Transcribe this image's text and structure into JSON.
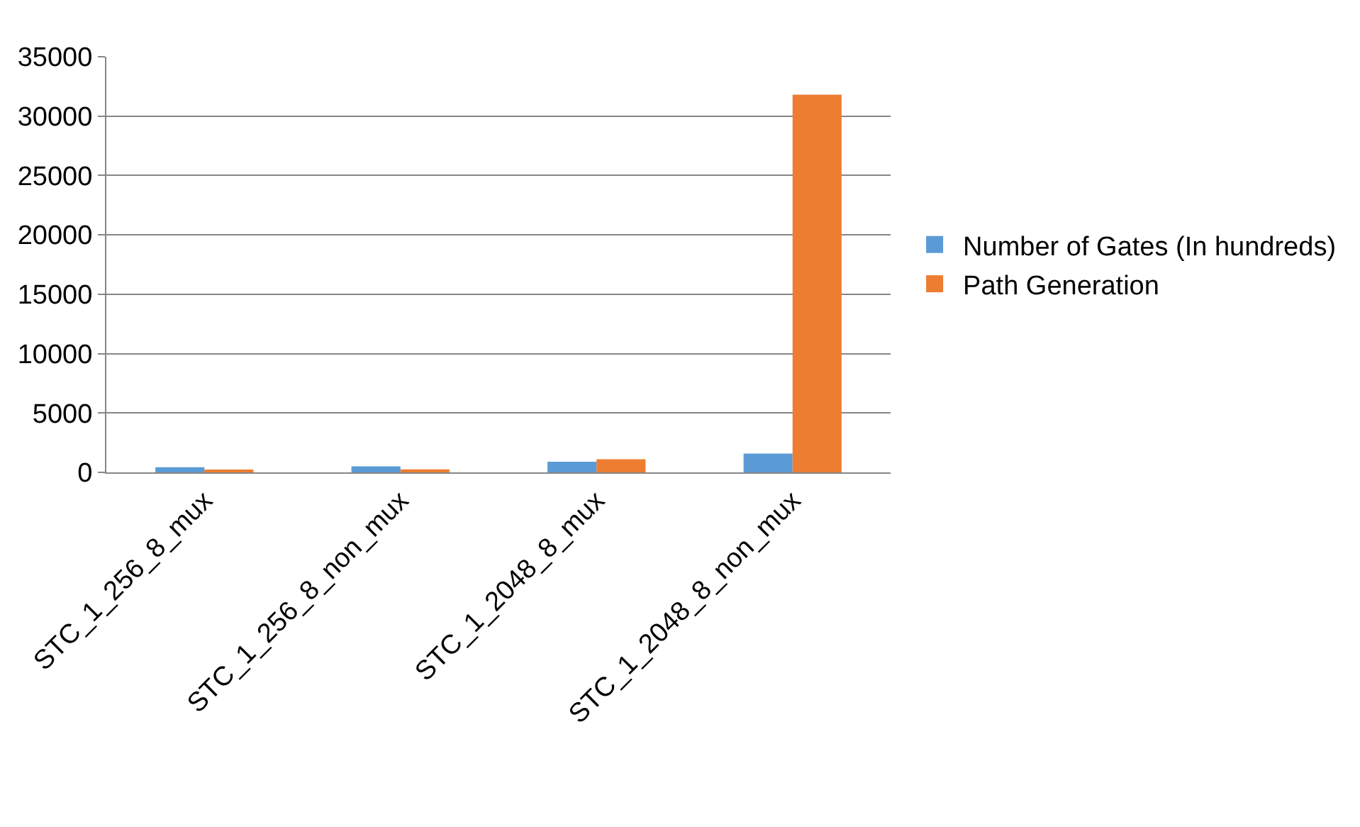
{
  "chart_data": {
    "type": "bar",
    "categories": [
      "STC_1_256_8_mux",
      "STC_1_256_8_non_mux",
      "STC_1_2048_8_mux",
      "STC_1_2048_8_non_mux"
    ],
    "series": [
      {
        "name": "Number of Gates (In hundreds)",
        "color": "#5b9bd5",
        "values": [
          430,
          510,
          900,
          1580
        ]
      },
      {
        "name": "Path Generation",
        "color": "#ed7d31",
        "values": [
          170,
          260,
          1110,
          31800
        ]
      }
    ],
    "ylim": [
      0,
      35000
    ],
    "yticks": [
      0,
      5000,
      10000,
      15000,
      20000,
      25000,
      30000,
      35000
    ],
    "grid": "y",
    "legend": "right"
  }
}
